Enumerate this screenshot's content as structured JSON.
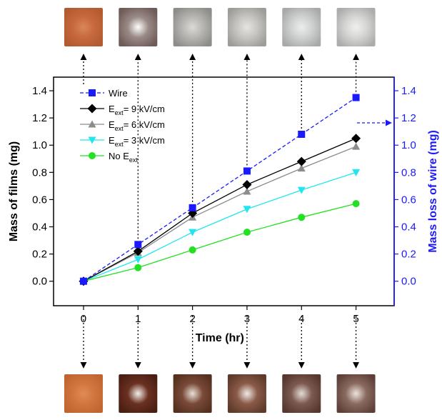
{
  "chart_data": {
    "type": "line",
    "xlabel": "Time (hr)",
    "ylabel": "Mass of films (mg)",
    "ylabel_right": "Mass loss of wire (mg)",
    "x": [
      0,
      1,
      2,
      3,
      4,
      5
    ],
    "xlim": [
      -0.55,
      5.7
    ],
    "ylim": [
      -0.18,
      1.5
    ],
    "ylim_right": [
      -0.18,
      1.5
    ],
    "xticks": [
      "0",
      "1",
      "2",
      "3",
      "4",
      "5"
    ],
    "yticks": [
      "0.0",
      "0.2",
      "0.4",
      "0.6",
      "0.8",
      "1.0",
      "1.2",
      "1.4"
    ],
    "yticks_right": [
      "0.0",
      "0.2",
      "0.4",
      "0.6",
      "0.8",
      "1.0",
      "1.2",
      "1.4"
    ],
    "legend_position": "top-left",
    "series": [
      {
        "name": "Wire",
        "sub": "",
        "suffix": "",
        "axis": "right",
        "color": "#1a1aff",
        "marker": "square",
        "dashed": true,
        "values": [
          0.0,
          0.27,
          0.54,
          0.81,
          1.08,
          1.35
        ]
      },
      {
        "name": "E",
        "sub": "ext",
        "suffix": "= 9 kV/cm",
        "axis": "left",
        "color": "#000000",
        "marker": "diamond",
        "dashed": false,
        "values": [
          0.0,
          0.22,
          0.5,
          0.71,
          0.88,
          1.05
        ]
      },
      {
        "name": "E",
        "sub": "ext",
        "suffix": "= 6 kV/cm",
        "axis": "left",
        "color": "#8c8c8c",
        "marker": "triangle-up",
        "dashed": false,
        "values": [
          0.0,
          0.21,
          0.47,
          0.66,
          0.83,
          0.99
        ]
      },
      {
        "name": "E",
        "sub": "ext",
        "suffix": "= 3 kV/cm",
        "axis": "left",
        "color": "#22e5f0",
        "marker": "triangle-down",
        "dashed": false,
        "values": [
          0.0,
          0.16,
          0.36,
          0.53,
          0.67,
          0.8
        ]
      },
      {
        "name": "No E",
        "sub": "ext",
        "suffix": "",
        "axis": "left",
        "color": "#22e022",
        "marker": "circle",
        "dashed": false,
        "values": [
          0.0,
          0.1,
          0.23,
          0.36,
          0.47,
          0.57
        ]
      }
    ]
  },
  "photos_top": [
    {
      "base": "#c8693e",
      "center": "#d9875a",
      "dark": "#b35a30"
    },
    {
      "base": "#9a8a86",
      "center": "#ffffff",
      "dark": "#6e5a56"
    },
    {
      "base": "#b8b6b2",
      "center": "#dcdad8",
      "dark": "#8e8c88"
    },
    {
      "base": "#c8c6c2",
      "center": "#e6e4e2",
      "dark": "#9e9c98"
    },
    {
      "base": "#d0d2d2",
      "center": "#eceeee",
      "dark": "#a8aaaa"
    },
    {
      "base": "#d6d6d4",
      "center": "#f0f0ee",
      "dark": "#acacaa"
    }
  ],
  "photos_bottom": [
    {
      "base": "#d27640",
      "center": "#e08c55",
      "dark": "#c06530"
    },
    {
      "base": "#6a3020",
      "center": "#f4f0ec",
      "dark": "#4a1e12"
    },
    {
      "base": "#7a4a38",
      "center": "#e8e0d8",
      "dark": "#55301f"
    },
    {
      "base": "#8a5a48",
      "center": "#f0ebe6",
      "dark": "#5e3a2a"
    },
    {
      "base": "#7c5a50",
      "center": "#e4dcd6",
      "dark": "#56382e"
    },
    {
      "base": "#8a6a60",
      "center": "#ece4de",
      "dark": "#5e4038"
    }
  ]
}
